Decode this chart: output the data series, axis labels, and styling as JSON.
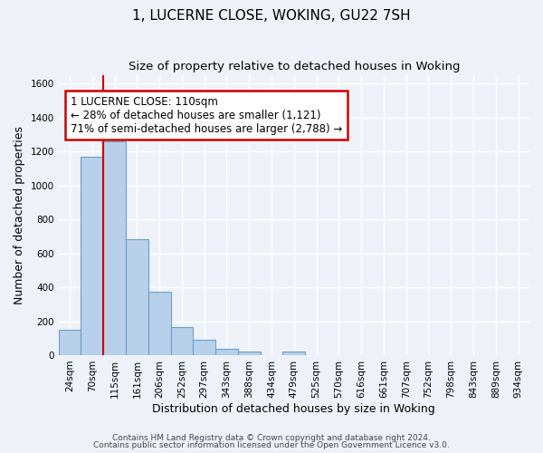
{
  "title": "1, LUCERNE CLOSE, WOKING, GU22 7SH",
  "subtitle": "Size of property relative to detached houses in Woking",
  "xlabel": "Distribution of detached houses by size in Woking",
  "ylabel": "Number of detached properties",
  "bin_labels": [
    "24sqm",
    "70sqm",
    "115sqm",
    "161sqm",
    "206sqm",
    "252sqm",
    "297sqm",
    "343sqm",
    "388sqm",
    "434sqm",
    "479sqm",
    "525sqm",
    "570sqm",
    "616sqm",
    "661sqm",
    "707sqm",
    "752sqm",
    "798sqm",
    "843sqm",
    "889sqm",
    "934sqm"
  ],
  "bar_heights": [
    150,
    1170,
    1260,
    685,
    375,
    165,
    90,
    35,
    20,
    0,
    20,
    0,
    0,
    0,
    0,
    0,
    0,
    0,
    0,
    0,
    0
  ],
  "bar_color": "#b8d0ea",
  "bar_edge_color": "#6a9fc8",
  "bar_width": 1.0,
  "vline_x": 2.0,
  "vline_color": "#cc0000",
  "annotation_title": "1 LUCERNE CLOSE: 110sqm",
  "annotation_line1": "← 28% of detached houses are smaller (1,121)",
  "annotation_line2": "71% of semi-detached houses are larger (2,788) →",
  "annotation_box_color": "#ffffff",
  "annotation_box_edge": "#cc0000",
  "ylim": [
    0,
    1650
  ],
  "yticks": [
    0,
    200,
    400,
    600,
    800,
    1000,
    1200,
    1400,
    1600
  ],
  "footer1": "Contains HM Land Registry data © Crown copyright and database right 2024.",
  "footer2": "Contains public sector information licensed under the Open Government Licence v3.0.",
  "bg_color": "#eef2f8",
  "grid_color": "#ffffff",
  "title_fontsize": 11,
  "subtitle_fontsize": 9.5,
  "label_fontsize": 9,
  "tick_fontsize": 7.5,
  "footer_fontsize": 6.5,
  "annotation_fontsize": 8.5
}
